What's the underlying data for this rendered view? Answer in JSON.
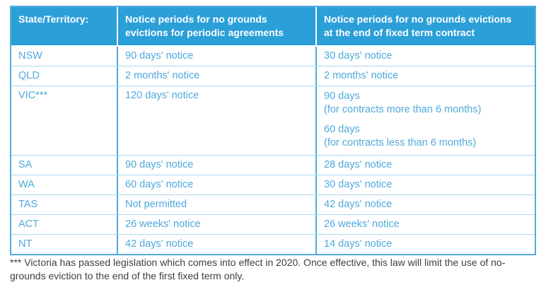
{
  "colors": {
    "header_background": "#2B9FD8",
    "header_text": "#FFFFFF",
    "cell_text": "#4FA9DC",
    "table_border": "#54ABDC",
    "row_divider": "#ABD9F1",
    "footnote_text": "#3F3F41"
  },
  "table": {
    "headers": [
      {
        "line1": "State/Territory:",
        "line2": ""
      },
      {
        "line1": "Notice periods for no grounds",
        "line2": "evictions for periodic agreements"
      },
      {
        "line1": "Notice periods for no grounds evictions",
        "line2": "at the end of fixed term contract"
      }
    ],
    "rows": [
      {
        "state": "NSW",
        "periodic": "90 days' notice",
        "fixed": "30 days' notice"
      },
      {
        "state": "QLD",
        "periodic": "2 months' notice",
        "fixed": "2 months' notice"
      },
      {
        "state": "VIC***",
        "periodic": "120 days' notice",
        "fixed_blocks": [
          {
            "days": "90 days",
            "condition": "(for contracts more than 6 months)"
          },
          {
            "days": "60 days",
            "condition": "(for contracts less than 6 months)"
          }
        ]
      },
      {
        "state": "SA",
        "periodic": "90 days' notice",
        "fixed": "28 days' notice"
      },
      {
        "state": "WA",
        "periodic": "60 days' notice",
        "fixed": "30 days' notice"
      },
      {
        "state": "TAS",
        "periodic": "Not permitted",
        "fixed": "42 days' notice"
      },
      {
        "state": "ACT",
        "periodic": "26 weeks' notice",
        "fixed": "26 weeks' notice"
      },
      {
        "state": "NT",
        "periodic": "42 days' notice",
        "fixed": "14 days' notice"
      }
    ]
  },
  "footnote": {
    "text": "*** Victoria has passed legislation which comes into effect in 2020. Once effective, this law will limit the use of no-grounds eviction to the end of the first fixed term only."
  }
}
